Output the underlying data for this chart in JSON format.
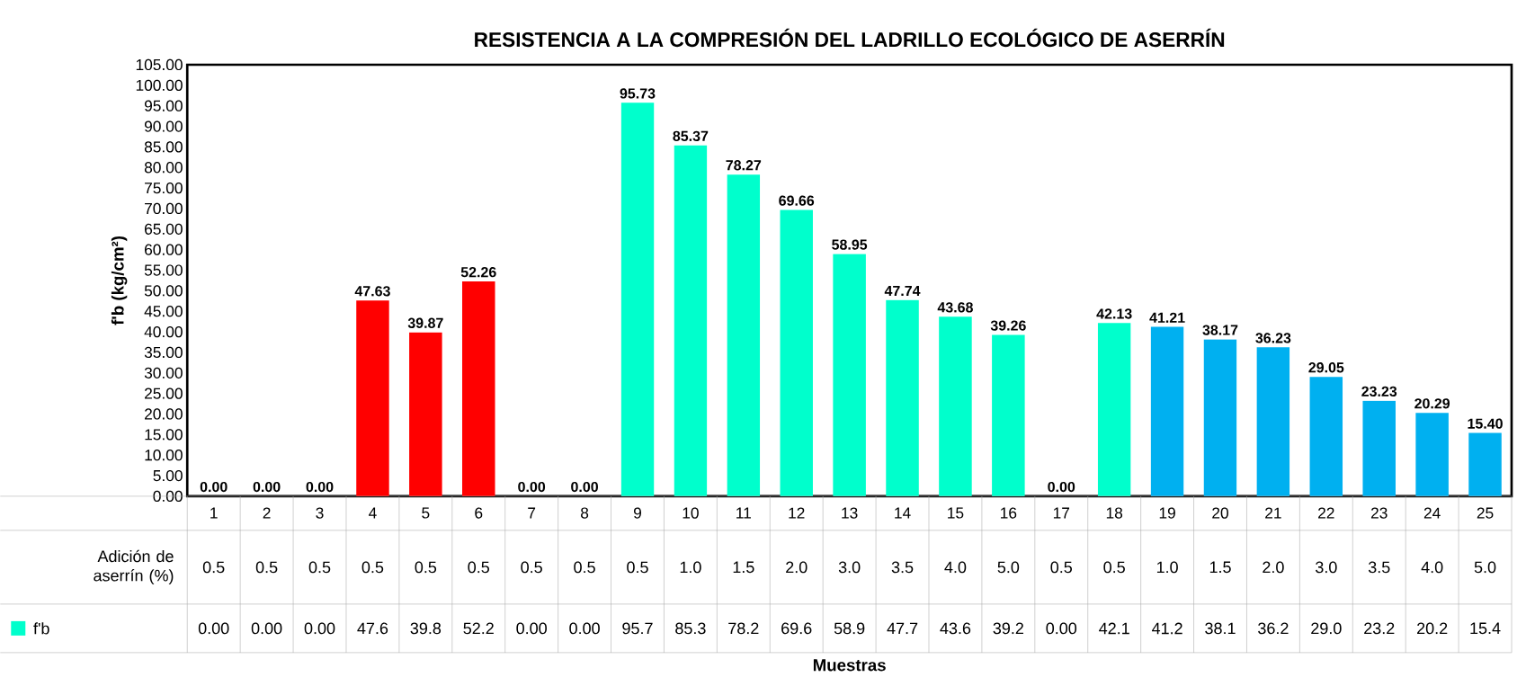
{
  "chart_data": {
    "type": "bar",
    "title": "RESISTENCIA  A LA COMPRESIÓN DEL LADRILLO ECOLÓGICO DE ASERRÍN",
    "ylabel": "f'b (kg/cm²)",
    "categories": [
      "1",
      "2",
      "3",
      "4",
      "5",
      "6",
      "7",
      "8",
      "9",
      "10",
      "11",
      "12",
      "13",
      "14",
      "15",
      "16",
      "17",
      "18",
      "19",
      "20",
      "21",
      "22",
      "23",
      "24",
      "25"
    ],
    "series": [
      {
        "name": "f'b",
        "color": "#00ffcc",
        "colors": [
          "#00ffcc",
          "#00ffcc",
          "#00ffcc",
          "#ff0000",
          "#ff0000",
          "#ff0000",
          "#00ffcc",
          "#00ffcc",
          "#00ffcc",
          "#00ffcc",
          "#00ffcc",
          "#00ffcc",
          "#00ffcc",
          "#00ffcc",
          "#00ffcc",
          "#00ffcc",
          "#00ffcc",
          "#00ffcc",
          "#00b0f0",
          "#00b0f0",
          "#00b0f0",
          "#00b0f0",
          "#00b0f0",
          "#00b0f0",
          "#00b0f0"
        ],
        "values": [
          0,
          0,
          0,
          47.63,
          39.87,
          52.26,
          0,
          0,
          95.73,
          85.37,
          78.27,
          69.66,
          58.95,
          47.74,
          43.68,
          39.26,
          0,
          42.13,
          41.21,
          38.17,
          36.23,
          29.05,
          23.23,
          20.29,
          15.4
        ],
        "value_labels": [
          "0.00",
          "0.00",
          "0.00",
          "47.63",
          "39.87",
          "52.26",
          "0.00",
          "0.00",
          "95.73",
          "85.37",
          "78.27",
          "69.66",
          "58.95",
          "47.74",
          "43.68",
          "39.26",
          "0.00",
          "42.13",
          "41.21",
          "38.17",
          "36.23",
          "29.05",
          "23.23",
          "20.29",
          "15.40"
        ]
      }
    ],
    "ylim": [
      0,
      105
    ],
    "yticks": [
      {
        "value": 0,
        "label": "0.00"
      },
      {
        "value": 5,
        "label": "5.00"
      },
      {
        "value": 10,
        "label": "10.00"
      },
      {
        "value": 15,
        "label": "15.00"
      },
      {
        "value": 20,
        "label": "20.00"
      },
      {
        "value": 25,
        "label": "25.00"
      },
      {
        "value": 30,
        "label": "30.00"
      },
      {
        "value": 35,
        "label": "35.00"
      },
      {
        "value": 40,
        "label": "40.00"
      },
      {
        "value": 45,
        "label": "45.00"
      },
      {
        "value": 50,
        "label": "50.00"
      },
      {
        "value": 55,
        "label": "55.00"
      },
      {
        "value": 60,
        "label": "60.00"
      },
      {
        "value": 65,
        "label": "65.00"
      },
      {
        "value": 70,
        "label": "70.00"
      },
      {
        "value": 75,
        "label": "75.00"
      },
      {
        "value": 80,
        "label": "80.00"
      },
      {
        "value": 85,
        "label": "85.00"
      },
      {
        "value": 90,
        "label": "90.00"
      },
      {
        "value": 95,
        "label": "95.00"
      },
      {
        "value": 100,
        "label": "100.00"
      },
      {
        "value": 105,
        "label": "105.00"
      }
    ],
    "legend": "bottom",
    "annotations": [
      "Adición de aserrín (%)",
      "0.5",
      "0.5",
      "0.5",
      "0.5",
      "0.5",
      "0.5",
      "0.5",
      "0.5",
      "0.5",
      "1.0",
      "1.5",
      "2.0",
      "3.0",
      "3.5",
      "4.0",
      "5.0",
      "0.5",
      "0.5",
      "1.0",
      "1.5",
      "2.0",
      "3.0",
      "3.5",
      "4.0",
      "5.0",
      "0.00",
      "0.00",
      "0.00",
      "47.6",
      "39.8",
      "52.2",
      "0.00",
      "0.00",
      "95.7",
      "85.3",
      "78.2",
      "69.6",
      "58.9",
      "47.7",
      "43.6",
      "39.2",
      "0.00",
      "42.1",
      "41.2",
      "38.1",
      "36.2",
      "29.0",
      "23.2",
      "20.2",
      "15.4",
      "Muestras"
    ]
  }
}
